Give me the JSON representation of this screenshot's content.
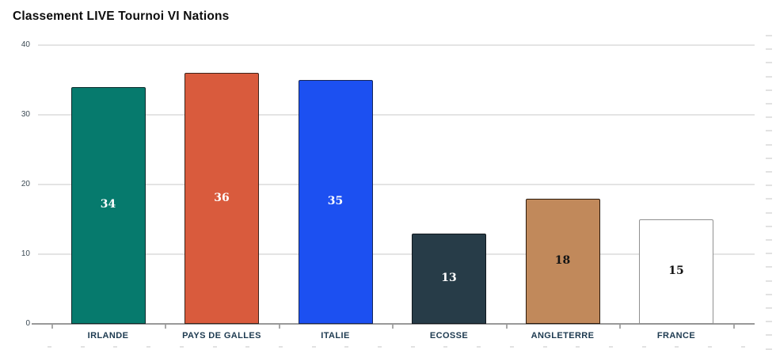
{
  "title": "Classement LIVE Tournoi VI Nations",
  "chart_data": {
    "type": "bar",
    "title": "Classement LIVE Tournoi VI Nations",
    "categories": [
      "IRLANDE",
      "PAYS DE GALLES",
      "ITALIE",
      "ECOSSE",
      "ANGLETERRE",
      "FRANCE"
    ],
    "values": [
      34,
      36,
      35,
      13,
      18,
      15
    ],
    "value_labels": [
      "34",
      "36",
      "35",
      "13",
      "18",
      "15"
    ],
    "bar_fill_colors": [
      "#067a6d",
      "#d95b3d",
      "#1c50f1",
      "#273c48",
      "#c1895b",
      "#ffffff"
    ],
    "bar_border_colors": [
      "#0b2a2b",
      "#3d231a",
      "#15265a",
      "#10181e",
      "#2a180b",
      "#909090"
    ],
    "value_label_colors": [
      "#ffffff",
      "#ffffff",
      "#ffffff",
      "#ffffff",
      "#141414",
      "#141414"
    ],
    "xlabel": "",
    "ylabel": "",
    "ylim": [
      0,
      40
    ],
    "yticks": [
      0,
      10,
      20,
      30,
      40
    ],
    "grid": true,
    "legend": false,
    "colors": {
      "gridline": "#e4e4e4",
      "axis_line": "#999999",
      "ytick_label": "#3c4a54",
      "category_label": "#1d3a50",
      "title": "#0d0d0d",
      "minor_tick": "#e2e2e2"
    }
  }
}
